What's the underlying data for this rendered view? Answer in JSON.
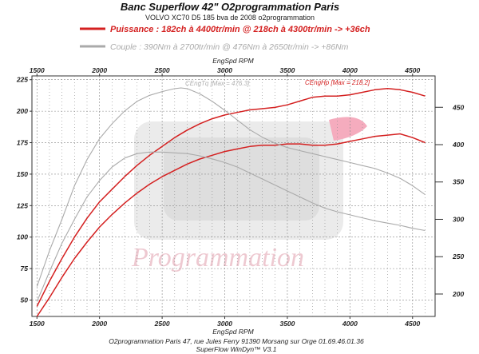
{
  "header": {
    "title": "Banc Superflow 42\" O2programmation Paris",
    "subtitle": "VOLVO XC70 D5 185 bva de 2008 o2programmation"
  },
  "legend": {
    "power": "Puissance : 182ch à 4400tr/min @ 218ch à 4300tr/min -> +36ch",
    "torque": "Couple : 390Nm à 2700tr/min @ 476Nm à 2650tr/min -> +86Nm"
  },
  "footer": {
    "line1": "O2programmation Paris 47, rue Jules Ferry 91390 Morsang sur Orge 01.69.46.01.36",
    "line2": "SuperFlow WinDyn™ V3.1"
  },
  "watermark": "Programmation",
  "colors": {
    "power": "#d42020",
    "torque": "#aaaaaa",
    "grid": "#888888",
    "watermark": "#e9b8c2"
  },
  "chart_data": {
    "type": "line",
    "xlabel": "EngSpd RPM",
    "x_ticks": [
      1500,
      2000,
      2500,
      3000,
      3500,
      4000,
      4500
    ],
    "xlim": [
      1460,
      4680
    ],
    "left_axis": {
      "ticks": [
        50,
        75,
        100,
        125,
        150,
        175,
        200,
        225
      ],
      "ylim": [
        37,
        228
      ]
    },
    "right_axis": {
      "ticks": [
        200,
        250,
        300,
        350,
        400,
        450
      ],
      "ylim": [
        170,
        492
      ]
    },
    "annotations": {
      "torque_max": "CEngTq [Max = 476.3]",
      "power_max": "CEngHp [Max = 218.2]"
    },
    "series": [
      {
        "name": "Puissance (modifiée)",
        "axis": "left",
        "color": "#d42020",
        "x": [
          1500,
          1600,
          1700,
          1800,
          1900,
          2000,
          2100,
          2200,
          2300,
          2400,
          2500,
          2600,
          2700,
          2800,
          2900,
          3000,
          3100,
          3200,
          3300,
          3400,
          3500,
          3600,
          3700,
          3800,
          3900,
          4000,
          4100,
          4200,
          4300,
          4400,
          4500,
          4600
        ],
        "values": [
          45,
          65,
          83,
          100,
          115,
          128,
          138,
          148,
          157,
          165,
          172,
          179,
          185,
          190,
          194,
          197,
          199,
          201,
          202,
          203,
          205,
          208,
          211,
          212,
          212,
          213,
          215,
          217,
          218,
          217,
          215,
          212
        ]
      },
      {
        "name": "Puissance (origine)",
        "axis": "left",
        "color": "#d42020",
        "x": [
          1500,
          1600,
          1700,
          1800,
          1900,
          2000,
          2100,
          2200,
          2300,
          2400,
          2500,
          2600,
          2700,
          2800,
          2900,
          3000,
          3100,
          3200,
          3300,
          3400,
          3500,
          3600,
          3700,
          3800,
          3900,
          4000,
          4100,
          4200,
          4300,
          4400,
          4500,
          4600
        ],
        "values": [
          37,
          52,
          68,
          83,
          96,
          108,
          118,
          127,
          135,
          142,
          148,
          153,
          158,
          162,
          165,
          168,
          170,
          172,
          173,
          173,
          174,
          174,
          173,
          173,
          174,
          176,
          178,
          180,
          181,
          182,
          179,
          175
        ]
      },
      {
        "name": "Couple (modifié)",
        "axis": "right",
        "color": "#aaaaaa",
        "x": [
          1500,
          1600,
          1700,
          1800,
          1900,
          2000,
          2100,
          2200,
          2300,
          2400,
          2500,
          2600,
          2650,
          2700,
          2800,
          2900,
          3000,
          3100,
          3200,
          3300,
          3400,
          3500,
          3600,
          3700,
          3800,
          3900,
          4000,
          4100,
          4200,
          4300,
          4400,
          4500,
          4600
        ],
        "values": [
          210,
          258,
          300,
          345,
          380,
          408,
          428,
          445,
          458,
          466,
          471,
          475,
          476,
          475,
          468,
          458,
          446,
          433,
          420,
          410,
          402,
          396,
          392,
          388,
          384,
          380,
          376,
          372,
          368,
          362,
          355,
          345,
          333
        ]
      },
      {
        "name": "Couple (origine)",
        "axis": "right",
        "color": "#aaaaaa",
        "x": [
          1500,
          1600,
          1700,
          1800,
          1900,
          2000,
          2100,
          2200,
          2300,
          2400,
          2500,
          2600,
          2700,
          2800,
          2900,
          3000,
          3100,
          3200,
          3300,
          3400,
          3500,
          3600,
          3700,
          3800,
          3900,
          4000,
          4100,
          4200,
          4300,
          4400,
          4500,
          4600
        ],
        "values": [
          190,
          230,
          268,
          300,
          330,
          352,
          370,
          382,
          388,
          390,
          390,
          389,
          388,
          385,
          381,
          376,
          370,
          362,
          354,
          346,
          338,
          330,
          322,
          315,
          310,
          306,
          302,
          298,
          295,
          292,
          288,
          285
        ]
      }
    ]
  }
}
